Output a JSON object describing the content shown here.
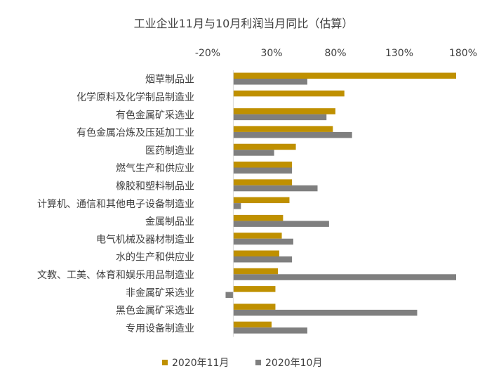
{
  "chart_data": {
    "type": "bar",
    "orientation": "horizontal",
    "title": "工业企业11月与10月利润当月同比（估算）",
    "xlabel": "",
    "ylabel": "",
    "xlim": [
      -20,
      180
    ],
    "x_ticks": [
      -20,
      30,
      80,
      130,
      180
    ],
    "x_tick_labels": [
      "-20%",
      "30%",
      "80%",
      "130%",
      "180%"
    ],
    "x_axis_position": "top",
    "grid": false,
    "legend_position": "bottom",
    "categories": [
      "烟草制品业",
      "化学原料及化学制品制造业",
      "有色金属矿采选业",
      "有色金属冶炼及压延加工业",
      "医药制造业",
      "燃气生产和供应业",
      "橡胶和塑料制品业",
      "计算机、通信和其他电子设备制造业",
      "金属制品业",
      "电气机械及器材制造业",
      "水的生产和供应业",
      "文教、工美、体育和娱乐用品制造业",
      "非金属矿采选业",
      "黑色金属矿采选业",
      "专用设备制造业"
    ],
    "series": [
      {
        "name": "2020年11月",
        "color": "#bf9000",
        "values": [
          200,
          87,
          80,
          78,
          49,
          46,
          46,
          44,
          39,
          38,
          36,
          35,
          33,
          33,
          30
        ]
      },
      {
        "name": "2020年10月",
        "color": "#7f7f7f",
        "values": [
          58,
          null,
          73,
          93,
          32,
          46,
          66,
          6,
          75,
          47,
          46,
          200,
          -6,
          144,
          58
        ]
      }
    ]
  }
}
